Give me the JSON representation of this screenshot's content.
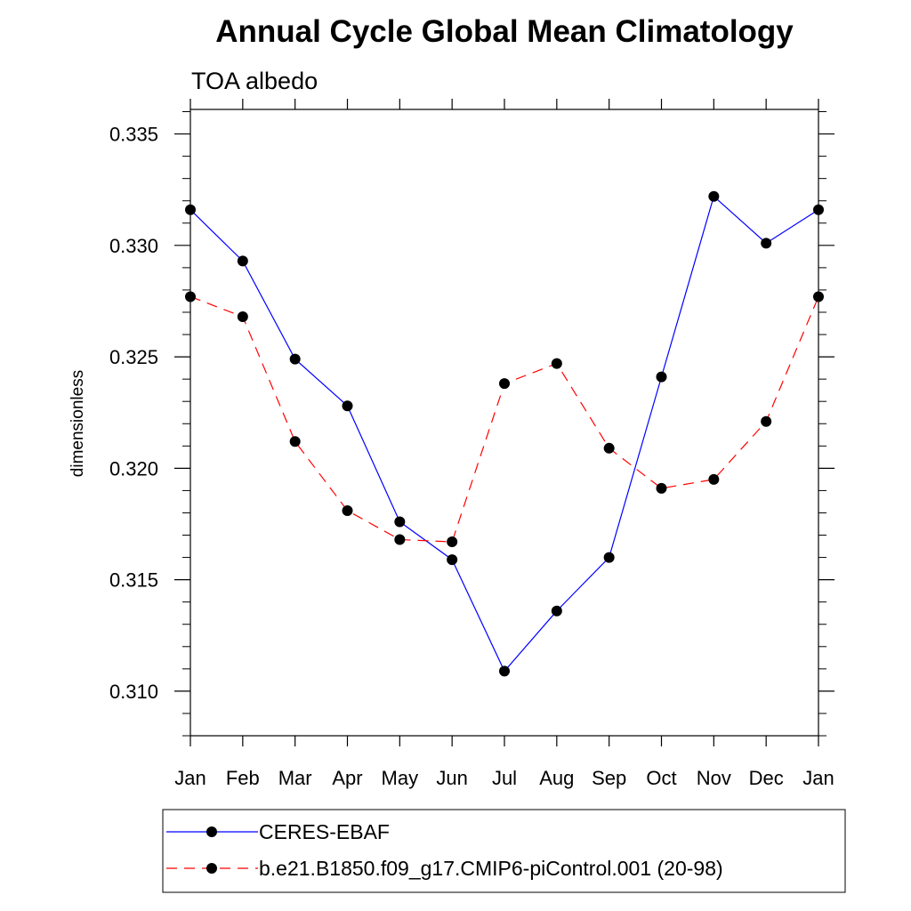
{
  "chart_data": {
    "type": "line",
    "title": "Annual Cycle Global Mean Climatology",
    "subtitle": "TOA albedo",
    "ylabel": "dimensionless",
    "xlabel": "",
    "categories": [
      "Jan",
      "Feb",
      "Mar",
      "Apr",
      "May",
      "Jun",
      "Jul",
      "Aug",
      "Sep",
      "Oct",
      "Nov",
      "Dec",
      "Jan"
    ],
    "ylim": [
      0.308,
      0.3361
    ],
    "yticks": [
      0.31,
      0.315,
      0.32,
      0.325,
      0.33,
      0.335
    ],
    "ytick_labels": [
      "0.310",
      "0.315",
      "0.320",
      "0.325",
      "0.330",
      "0.335"
    ],
    "series": [
      {
        "name": "CERES-EBAF",
        "color": "#0000ff",
        "dash": "solid",
        "marker": "filled-circle",
        "values": [
          0.3316,
          0.3293,
          0.3249,
          0.3228,
          0.3176,
          0.3159,
          0.3109,
          0.3136,
          0.316,
          0.3241,
          0.3322,
          0.3301,
          0.3316
        ]
      },
      {
        "name": "b.e21.B1850.f09_g17.CMIP6-piControl.001 (20-98)",
        "color": "#ff0000",
        "dash": "dashed",
        "marker": "filled-circle",
        "values": [
          0.3277,
          0.3268,
          0.3212,
          0.3181,
          0.3168,
          0.3167,
          0.3238,
          0.3247,
          0.3209,
          0.3191,
          0.3195,
          0.3221,
          0.3277
        ]
      }
    ],
    "legend_position": "bottom",
    "grid": false
  }
}
